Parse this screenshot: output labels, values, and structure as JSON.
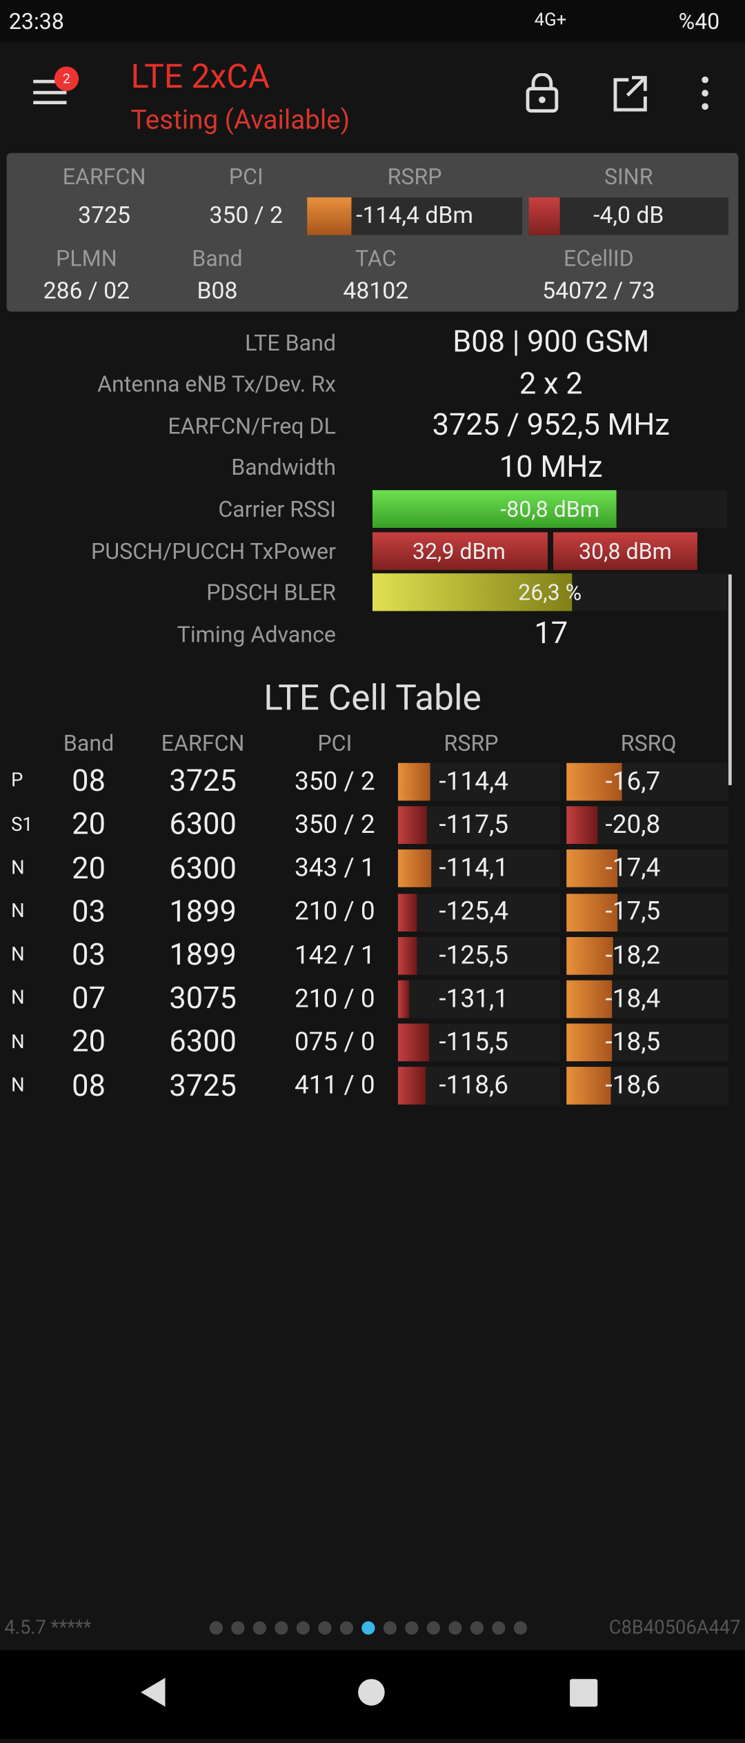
{
  "status": {
    "time": "23:38",
    "network": "4G+",
    "battery": "%40"
  },
  "header": {
    "badge": "2",
    "title": "LTE 2xCA",
    "subtitle": "Testing (Available)"
  },
  "summary": {
    "labels": [
      "EARFCN",
      "PCI",
      "RSRP",
      "SINR"
    ],
    "values": [
      "3725",
      "350 / 2",
      "-114,4 dBm",
      "-4,0 dB"
    ],
    "labels2": [
      "PLMN",
      "Band",
      "TAC",
      "ECellID"
    ],
    "values2": [
      "286 / 02",
      "B08",
      "48102",
      "54072 / 73"
    ]
  },
  "details": [
    [
      "LTE Band",
      "B08 | 900 GSM"
    ],
    [
      "Antenna eNB Tx/Dev. Rx",
      "2 x 2"
    ],
    [
      "EARFCN/Freq DL",
      "3725 / 952,5 MHz"
    ],
    [
      "Bandwidth",
      "10 MHz"
    ],
    [
      "Carrier RSSI",
      "-80,8 dBm"
    ],
    [
      "PUSCH/PUCCH TxPower",
      "32,9 dBm",
      "30,8 dBm"
    ],
    [
      "PDSCH BLER",
      "26,3 %"
    ],
    [
      "Timing Advance",
      "17"
    ]
  ],
  "table": {
    "title": "LTE Cell Table",
    "headers": [
      "Band",
      "EARFCN",
      "PCI",
      "RSRP",
      "RSRQ"
    ],
    "rows": [
      [
        "P",
        "08",
        "3725",
        "350 / 2",
        "-114,4",
        "-16,7"
      ],
      [
        "S1",
        "20",
        "6300",
        "350 / 2",
        "-117,5",
        "-20,8"
      ],
      [
        "N",
        "20",
        "6300",
        "343 / 1",
        "-114,1",
        "-17,4"
      ],
      [
        "N",
        "03",
        "1899",
        "210 / 0",
        "-125,4",
        "-17,5"
      ],
      [
        "N",
        "03",
        "1899",
        "142 / 1",
        "-125,5",
        "-18,2"
      ],
      [
        "N",
        "07",
        "3075",
        "210 / 0",
        "-131,1",
        "-18,4"
      ],
      [
        "N",
        "20",
        "6300",
        "075 / 0",
        "-115,5",
        "-18,5"
      ],
      [
        "N",
        "08",
        "3725",
        "411 / 0",
        "-118,6",
        "-18,6"
      ]
    ]
  },
  "footer": {
    "version": "4.5.7 *****",
    "id": "C8B40506A447"
  }
}
